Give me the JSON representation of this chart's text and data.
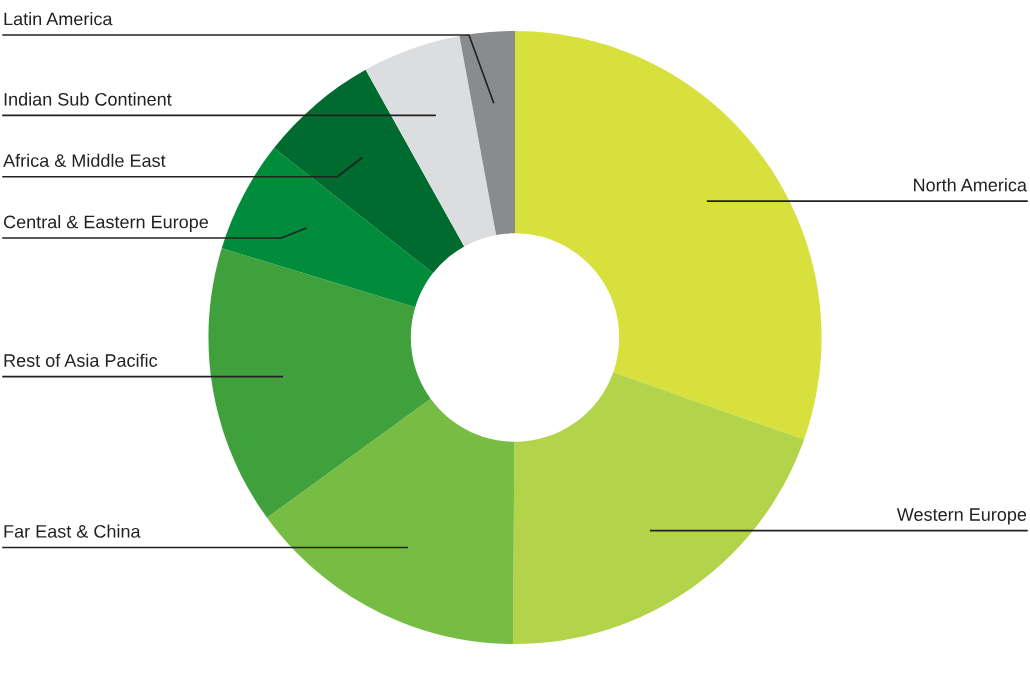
{
  "chart_data": {
    "type": "donut",
    "categories": [
      "North America",
      "Western Europe",
      "Far East & China",
      "Rest of Asia Pacific",
      "Central & Eastern Europe",
      "Africa & Middle East",
      "Indian Sub Continent",
      "Latin America"
    ],
    "values": [
      30.4,
      19.7,
      14.9,
      14.7,
      5.9,
      6.3,
      5.2,
      2.9
    ],
    "colors": [
      "#d7e03c",
      "#b3d34a",
      "#77bd43",
      "#3fa03c",
      "#008c3a",
      "#006b2e",
      "#dcdddf",
      "#8a8b8d"
    ],
    "legend": false
  }
}
